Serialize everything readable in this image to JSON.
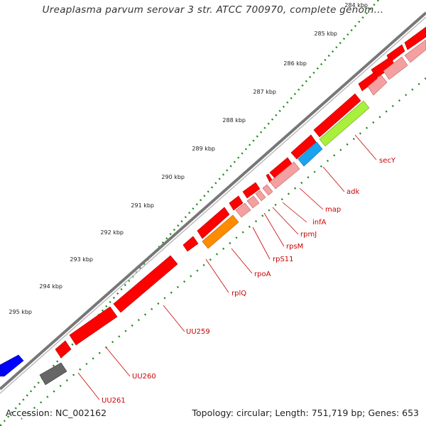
{
  "title": "Ureaplasma parvum serovar 3 str. ATCC 700970, complete genom...",
  "footer": {
    "accession": "Accession: NC_002162",
    "summary": "Topology: circular; Length: 751,719 bp; Genes: 653"
  },
  "colors": {
    "ruler_dots": "#1a8a1a",
    "backbone": "#888888",
    "gene_red": "#ff0000",
    "gene_pink": "#f4a0a0",
    "gene_orange": "#ff8c00",
    "gene_cyan": "#1aa3f0",
    "gene_lime": "#a8f03c",
    "gene_blue": "#0000ff",
    "gene_gray": "#666666",
    "label_red": "#cc0000"
  },
  "kbp_ticks": [
    "284 kbp",
    "285 kbp",
    "286 kbp",
    "287 kbp",
    "288 kbp",
    "289 kbp",
    "290 kbp",
    "291 kbp",
    "292 kbp",
    "293 kbp",
    "294 kbp",
    "295 kbp"
  ],
  "genes": [
    {
      "name": "secY",
      "color": "lime"
    },
    {
      "name": "adk",
      "color": "cyan"
    },
    {
      "name": "map",
      "color": "pink"
    },
    {
      "name": "infA",
      "color": "pink"
    },
    {
      "name": "rpmJ",
      "color": "pink"
    },
    {
      "name": "rpsM",
      "color": "pink"
    },
    {
      "name": "rpS11",
      "color": "pink"
    },
    {
      "name": "rpoA",
      "color": "orange"
    },
    {
      "name": "rplQ",
      "color": "red"
    },
    {
      "name": "UU259",
      "color": "red"
    },
    {
      "name": "UU260",
      "color": "red"
    },
    {
      "name": "UU261",
      "color": "gray"
    }
  ]
}
